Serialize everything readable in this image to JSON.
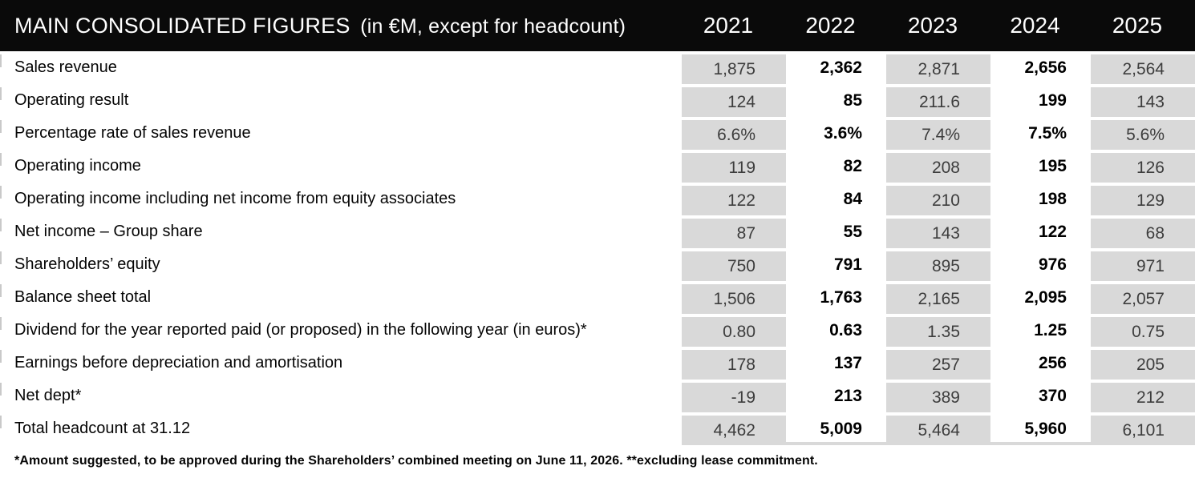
{
  "header": {
    "title": "MAIN CONSOLIDATED FIGURES",
    "subtitle": "(in €M, except for headcount)",
    "years": [
      "2021",
      "2022",
      "2023",
      "2024",
      "2025"
    ]
  },
  "table": {
    "rows": [
      {
        "label": "Sales revenue",
        "values": [
          "1,875",
          "2,362",
          "2,871",
          "2,656",
          "2,564"
        ]
      },
      {
        "label": "Operating result",
        "values": [
          "124",
          "85",
          "211.6",
          "199",
          "143"
        ]
      },
      {
        "label": "Percentage rate of sales revenue",
        "values": [
          "6.6%",
          "3.6%",
          "7.4%",
          "7.5%",
          "5.6%"
        ]
      },
      {
        "label": "Operating income",
        "values": [
          "119",
          "82",
          "208",
          "195",
          "126"
        ]
      },
      {
        "label": "Operating income including net income from equity associates",
        "values": [
          "122",
          "84",
          "210",
          "198",
          "129"
        ]
      },
      {
        "label": "Net income – Group share",
        "values": [
          "87",
          "55",
          "143",
          "122",
          "68"
        ]
      },
      {
        "label": "Shareholders’ equity",
        "values": [
          "750",
          "791",
          "895",
          "976",
          "971"
        ]
      },
      {
        "label": "Balance sheet total",
        "values": [
          "1,506",
          "1,763",
          "2,165",
          "2,095",
          "2,057"
        ]
      },
      {
        "label": "Dividend for the year reported paid (or proposed) in the following year (in euros)*",
        "values": [
          "0.80",
          "0.63",
          "1.35",
          "1.25",
          "0.75"
        ]
      },
      {
        "label": "Earnings before depreciation and amortisation",
        "values": [
          "178",
          "137",
          "257",
          "256",
          "205"
        ]
      },
      {
        "label": "Net dept*",
        "values": [
          "-19",
          "213",
          "389",
          "370",
          "212"
        ]
      },
      {
        "label": "Total headcount at 31.12",
        "values": [
          "4,462",
          "5,009",
          "5,464",
          "5,960",
          "6,101"
        ]
      }
    ]
  },
  "footnote": "*Amount suggested, to be approved during the Shareholders’ combined meeting on June 11, 2026. **excluding lease commitment.",
  "colors": {
    "header_bg": "#0a0a0a",
    "header_text": "#ffffff",
    "shaded_cell_bg": "#d9d9d9",
    "shaded_cell_text": "#3d3d3d",
    "bold_cell_text": "#000000",
    "row_label_text": "#050505"
  }
}
